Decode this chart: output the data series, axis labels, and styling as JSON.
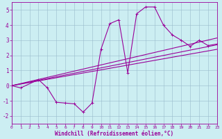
{
  "xlabel": "Windchill (Refroidissement éolien,°C)",
  "xlim": [
    0,
    23
  ],
  "ylim": [
    -2.5,
    5.5
  ],
  "yticks": [
    -2,
    -1,
    0,
    1,
    2,
    3,
    4,
    5
  ],
  "xticks": [
    0,
    1,
    2,
    3,
    4,
    5,
    6,
    7,
    8,
    9,
    10,
    11,
    12,
    13,
    14,
    15,
    16,
    17,
    18,
    19,
    20,
    21,
    22,
    23
  ],
  "bg_color": "#cceef2",
  "line_color": "#990099",
  "grid_color": "#99bbcc",
  "series1_x": [
    0,
    1,
    3,
    4,
    5,
    6,
    7,
    8,
    9,
    10,
    11,
    12,
    13,
    14,
    15,
    16,
    17,
    18,
    19,
    20,
    21,
    22,
    23
  ],
  "series1_y": [
    0.0,
    -0.15,
    0.4,
    -0.15,
    -1.1,
    -1.15,
    -1.2,
    -1.75,
    -1.15,
    2.4,
    4.1,
    4.35,
    0.85,
    4.75,
    5.2,
    5.2,
    4.0,
    3.35,
    3.0,
    2.6,
    3.0,
    2.65,
    2.75
  ],
  "line2": [
    [
      0,
      0
    ],
    [
      23,
      2.4
    ]
  ],
  "line3": [
    [
      0,
      0
    ],
    [
      23,
      2.7
    ]
  ],
  "line4": [
    [
      0,
      0
    ],
    [
      23,
      3.15
    ]
  ]
}
